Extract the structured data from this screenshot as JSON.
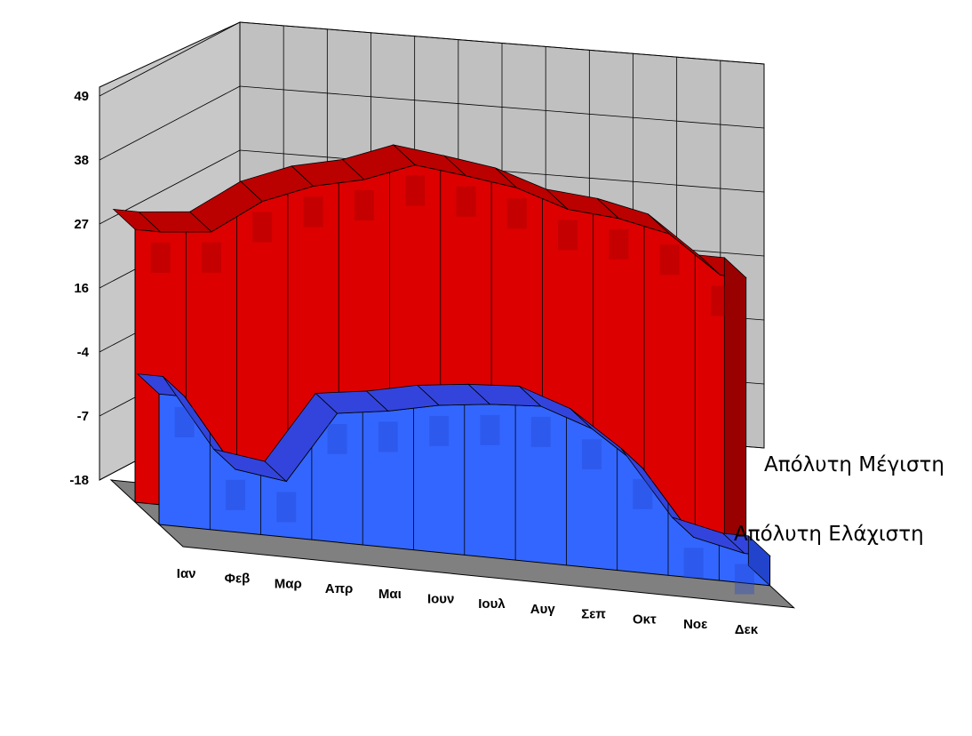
{
  "chart_data": {
    "type": "area",
    "title": "",
    "xlabel": "",
    "ylabel": "",
    "categories": [
      "Ιαν",
      "Φεβ",
      "Μαρ",
      "Απρ",
      "Μαι",
      "Ιουν",
      "Ιουλ",
      "Αυγ",
      "Σεπ",
      "Οκτ",
      "Νοε",
      "Δεκ"
    ],
    "y_tick_labels": [
      "49",
      "38",
      "27",
      "16",
      "-4",
      "-7",
      "-18"
    ],
    "series": [
      {
        "name": "Απόλυτη Μέγιστη",
        "color": "#dd0000",
        "values": [
          29.9,
          30.8,
          36.9,
          40.4,
          42.4,
          45.8,
          44.8,
          43.6,
          40.8,
          40.1,
          38.3,
          32.1
        ]
      },
      {
        "name": "Απόλυτη Ελάχιστη",
        "color": "#3366ff",
        "values": [
          -3.2,
          -7.2,
          -8.4,
          -3.7,
          -1.4,
          2.0,
          3.9,
          4.9,
          -0.5,
          -5.1,
          -11.0,
          -12.9
        ]
      }
    ],
    "legend_placement": "right",
    "grid": true,
    "view": "3d"
  }
}
